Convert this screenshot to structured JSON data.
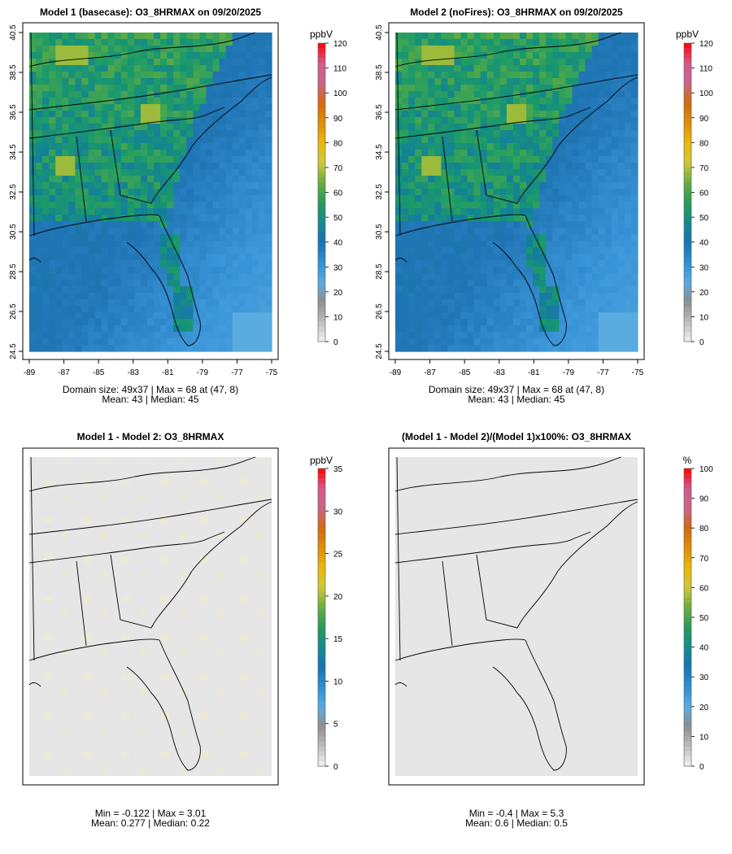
{
  "colors": {
    "grid_gray": "#e6e6e6",
    "frame": "#000000",
    "colorbar_stops": [
      "#f2f2f2",
      "#bdbdbd",
      "#8f8f8f",
      "#5aabe0",
      "#2f8fd0",
      "#1873b0",
      "#148c8c",
      "#2a9a5a",
      "#6aad3e",
      "#cfc83a",
      "#e9b80b",
      "#e08d0b",
      "#d2690e",
      "#c9658a",
      "#d35a8c",
      "#ff0000"
    ]
  },
  "chart_data": [
    {
      "type": "heatmap",
      "panel": "top-left",
      "title": "Model 1 (basecase): O3_8HRMAX on 09/20/2025",
      "xticks": [
        "-89",
        "-87",
        "-85",
        "-83",
        "-81",
        "-79",
        "-77",
        "-75"
      ],
      "yticks": [
        "24.5",
        "26.5",
        "28.5",
        "30.5",
        "32.5",
        "34.5",
        "36.5",
        "38.5",
        "40.5"
      ],
      "xlim": [
        -89,
        -75
      ],
      "ylim": [
        24.5,
        40.5
      ],
      "colorbar": {
        "unit": "ppbV",
        "range": [
          0,
          120
        ],
        "ticks": [
          "0",
          "10",
          "20",
          "30",
          "40",
          "50",
          "60",
          "70",
          "80",
          "90",
          "100",
          "110",
          "120"
        ]
      },
      "domain_size": "49x37",
      "max_value": 68,
      "max_location": "(47, 8)",
      "mean": 43,
      "median": 45,
      "stats_line1": "Domain size: 49x37 | Max = 68 at (47, 8)",
      "stats_line2": "Mean: 43 |  Median: 45"
    },
    {
      "type": "heatmap",
      "panel": "top-right",
      "title": "Model 2 (noFires): O3_8HRMAX on 09/20/2025",
      "xticks": [
        "-89",
        "-87",
        "-85",
        "-83",
        "-81",
        "-79",
        "-77",
        "-75"
      ],
      "yticks": [
        "24.5",
        "26.5",
        "28.5",
        "30.5",
        "32.5",
        "34.5",
        "36.5",
        "38.5",
        "40.5"
      ],
      "xlim": [
        -89,
        -75
      ],
      "ylim": [
        24.5,
        40.5
      ],
      "colorbar": {
        "unit": "ppbV",
        "range": [
          0,
          120
        ],
        "ticks": [
          "0",
          "10",
          "20",
          "30",
          "40",
          "50",
          "60",
          "70",
          "80",
          "90",
          "100",
          "110",
          "120"
        ]
      },
      "domain_size": "49x37",
      "max_value": 68,
      "max_location": "(47, 8)",
      "mean": 43,
      "median": 45,
      "stats_line1": "Domain size: 49x37 | Max = 68 at (47, 8)",
      "stats_line2": "Mean: 43 |  Median: 45"
    },
    {
      "type": "heatmap",
      "panel": "bottom-left",
      "title": "Model 1 - Model 2: O3_8HRMAX",
      "colorbar": {
        "unit": "ppbV",
        "range": [
          0,
          35
        ],
        "ticks": [
          "0",
          "5",
          "10",
          "15",
          "20",
          "25",
          "30",
          "35"
        ]
      },
      "min": -0.122,
      "max": 3.01,
      "mean": 0.277,
      "median": 0.22,
      "stats_line1": "Min = -0.122 | Max = 3.01",
      "stats_line2": "Mean: 0.277 |  Median: 0.22"
    },
    {
      "type": "heatmap",
      "panel": "bottom-right",
      "title": "(Model 1 - Model 2)/(Model 1)x100%: O3_8HRMAX",
      "colorbar": {
        "unit": "%",
        "range": [
          0,
          100
        ],
        "ticks": [
          "0",
          "10",
          "20",
          "30",
          "40",
          "50",
          "60",
          "70",
          "80",
          "90",
          "100"
        ]
      },
      "min": -0.4,
      "max": 5.3,
      "mean": 0.6,
      "median": 0.5,
      "stats_line1": "Min = -0.4 | Max = 5.3",
      "stats_line2": "Mean: 0.6 |  Median: 0.5"
    }
  ]
}
